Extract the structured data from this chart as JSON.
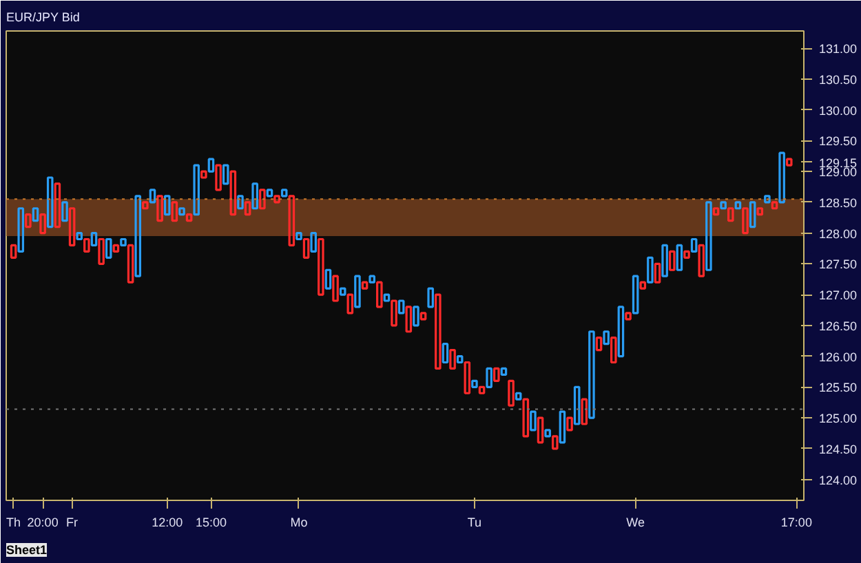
{
  "chart_data": {
    "type": "bar",
    "title": "EUR/JPY Bid",
    "categories": [
      "Th",
      null,
      null,
      null,
      "20:00",
      null,
      null,
      null,
      "Fr",
      null,
      null,
      null,
      null,
      null,
      null,
      null,
      null,
      null,
      null,
      null,
      null,
      "12:00",
      null,
      null,
      null,
      null,
      null,
      "15:00",
      null,
      null,
      null,
      null,
      null,
      null,
      null,
      null,
      null,
      null,
      null,
      "Mo",
      null,
      null,
      null,
      null,
      null,
      null,
      null,
      null,
      null,
      null,
      null,
      null,
      null,
      null,
      null,
      null,
      null,
      null,
      null,
      null,
      null,
      null,
      null,
      "Tu",
      null,
      null,
      null,
      null,
      null,
      null,
      null,
      null,
      null,
      null,
      null,
      null,
      null,
      null,
      null,
      null,
      null,
      null,
      null,
      null,
      null,
      "We",
      null,
      null,
      null,
      null,
      null,
      null,
      null,
      null,
      null,
      null,
      null,
      null,
      null,
      null,
      null,
      null,
      null,
      null,
      null,
      null,
      null,
      "17:00"
    ],
    "base": [
      127.6,
      127.7,
      128.1,
      128.2,
      128.0,
      128.1,
      128.1,
      128.2,
      127.8,
      127.9,
      127.7,
      127.8,
      127.5,
      127.6,
      127.7,
      127.8,
      127.2,
      127.3,
      128.4,
      128.5,
      128.2,
      128.3,
      128.2,
      128.3,
      128.2,
      128.3,
      128.9,
      129.0,
      128.7,
      128.8,
      128.3,
      128.4,
      128.3,
      128.4,
      128.4,
      128.6,
      128.5,
      128.6,
      127.8,
      127.9,
      127.6,
      127.7,
      127.0,
      127.1,
      126.9,
      127.0,
      126.7,
      126.8,
      127.1,
      127.2,
      126.8,
      126.9,
      126.5,
      126.7,
      126.4,
      126.5,
      126.6,
      126.8,
      125.8,
      125.9,
      125.8,
      125.9,
      125.4,
      125.5,
      125.4,
      125.5,
      125.6,
      125.7,
      125.2,
      125.3,
      124.7,
      124.8,
      124.6,
      124.7,
      124.5,
      124.6,
      124.8,
      124.9,
      124.9,
      125.0,
      126.1,
      126.2,
      125.9,
      126.0,
      126.6,
      126.7,
      127.1,
      127.2,
      127.2,
      127.3,
      127.4,
      127.4,
      127.6,
      127.7,
      127.3,
      127.4,
      128.3,
      128.4,
      128.2,
      128.4,
      128.0,
      128.1,
      128.3,
      128.5,
      128.4,
      128.5,
      129.1,
      null
    ],
    "values": [
      0.2,
      0.7,
      0.2,
      0.2,
      0.3,
      0.8,
      0.7,
      0.3,
      0.6,
      0.1,
      0.2,
      0.2,
      0.4,
      0.3,
      0.1,
      0.1,
      0.6,
      1.3,
      0.1,
      0.2,
      0.4,
      0.3,
      0.3,
      0.1,
      0.1,
      0.8,
      0.1,
      0.2,
      0.4,
      0.3,
      0.7,
      0.2,
      0.2,
      0.4,
      0.3,
      0.1,
      0.1,
      0.1,
      0.8,
      0.1,
      0.3,
      0.3,
      0.9,
      0.3,
      0.4,
      0.1,
      0.3,
      0.5,
      0.1,
      0.1,
      0.4,
      0.1,
      0.4,
      0.2,
      0.4,
      0.3,
      0.1,
      0.3,
      1.2,
      0.3,
      0.3,
      0.1,
      0.5,
      0.1,
      0.1,
      0.3,
      0.2,
      0.1,
      0.4,
      0.1,
      0.6,
      0.3,
      0.4,
      0.1,
      0.2,
      0.5,
      0.2,
      0.6,
      0.4,
      1.4,
      0.2,
      0.2,
      0.4,
      0.8,
      0.1,
      0.6,
      0.1,
      0.4,
      0.3,
      0.5,
      0.3,
      0.4,
      0.1,
      0.2,
      0.5,
      1.1,
      0.1,
      0.1,
      0.2,
      0.1,
      0.4,
      0.4,
      0.1,
      0.1,
      0.1,
      0.8,
      0.1,
      null
    ],
    "colors": [
      "#ff2a2a",
      "#2a9df4",
      "#ff2a2a",
      "#2a9df4",
      "#ff2a2a",
      "#2a9df4",
      "#ff2a2a",
      "#2a9df4",
      "#ff2a2a",
      "#2a9df4",
      "#ff2a2a",
      "#2a9df4",
      "#ff2a2a",
      "#2a9df4",
      "#ff2a2a",
      "#2a9df4",
      "#ff2a2a",
      "#2a9df4",
      "#ff2a2a",
      "#2a9df4",
      "#ff2a2a",
      "#2a9df4",
      "#ff2a2a",
      "#2a9df4",
      "#ff2a2a",
      "#2a9df4",
      "#ff2a2a",
      "#2a9df4",
      "#ff2a2a",
      "#2a9df4",
      "#ff2a2a",
      "#2a9df4",
      "#ff2a2a",
      "#2a9df4",
      "#ff2a2a",
      "#2a9df4",
      "#ff2a2a",
      "#2a9df4",
      "#ff2a2a",
      "#2a9df4",
      "#ff2a2a",
      "#2a9df4",
      "#ff2a2a",
      "#2a9df4",
      "#ff2a2a",
      "#2a9df4",
      "#ff2a2a",
      "#2a9df4",
      "#ff2a2a",
      "#2a9df4",
      "#ff2a2a",
      "#2a9df4",
      "#ff2a2a",
      "#2a9df4",
      "#ff2a2a",
      "#2a9df4",
      "#ff2a2a",
      "#2a9df4",
      "#ff2a2a",
      "#2a9df4",
      "#ff2a2a",
      "#2a9df4",
      "#ff2a2a",
      "#2a9df4",
      "#ff2a2a",
      "#2a9df4",
      "#ff2a2a",
      "#2a9df4",
      "#ff2a2a",
      "#2a9df4",
      "#ff2a2a",
      "#2a9df4",
      "#ff2a2a",
      "#2a9df4",
      "#ff2a2a",
      "#2a9df4",
      "#ff2a2a",
      "#2a9df4",
      "#ff2a2a",
      "#2a9df4",
      "#ff2a2a",
      "#2a9df4",
      "#ff2a2a",
      "#2a9df4",
      "#ff2a2a",
      "#2a9df4",
      "#ff2a2a",
      "#2a9df4",
      "#ff2a2a",
      "#2a9df4",
      "#ff2a2a",
      "#2a9df4",
      "#ff2a2a",
      "#2a9df4",
      "#ff2a2a",
      "#2a9df4",
      "#ff2a2a",
      "#2a9df4",
      "#ff2a2a",
      "#2a9df4",
      "#ff2a2a",
      "#2a9df4",
      "#ff2a2a",
      "#2a9df4",
      "#ff2a2a",
      "#2a9df4",
      "#ff2a2a",
      null
    ],
    "ylim": [
      123.66,
      131.28
    ],
    "yticks": [
      {
        "value": 124.0,
        "label": "124.00"
      },
      {
        "value": 124.5,
        "label": "124.50"
      },
      {
        "value": 125.0,
        "label": "125.00"
      },
      {
        "value": 125.5,
        "label": "125.50"
      },
      {
        "value": 126.0,
        "label": "126.00"
      },
      {
        "value": 126.5,
        "label": "126.50"
      },
      {
        "value": 127.0,
        "label": "127.00"
      },
      {
        "value": 127.5,
        "label": "127.50"
      },
      {
        "value": 128.0,
        "label": "128.00"
      },
      {
        "value": 128.5,
        "label": "128.50"
      },
      {
        "value": 129.0,
        "label": "129.00"
      },
      {
        "value": 129.15,
        "label": "129.15"
      },
      {
        "value": 129.5,
        "label": "129.50"
      },
      {
        "value": 130.0,
        "label": "130.00"
      },
      {
        "value": 130.5,
        "label": "130.50"
      },
      {
        "value": 131.0,
        "label": "131.00"
      }
    ],
    "ref_lines": [
      {
        "axis": "y",
        "value": 128.55,
        "color": "#c8782a",
        "line_style": "dotted"
      },
      {
        "axis": "y",
        "value": 125.14,
        "color": "#777777",
        "line_style": "dotted"
      }
    ],
    "bands": [
      {
        "axis": "y",
        "from": 127.95,
        "to": 128.55,
        "color": "#8a4a22"
      }
    ],
    "annotations": [
      "Sheet1"
    ],
    "grid": false
  }
}
